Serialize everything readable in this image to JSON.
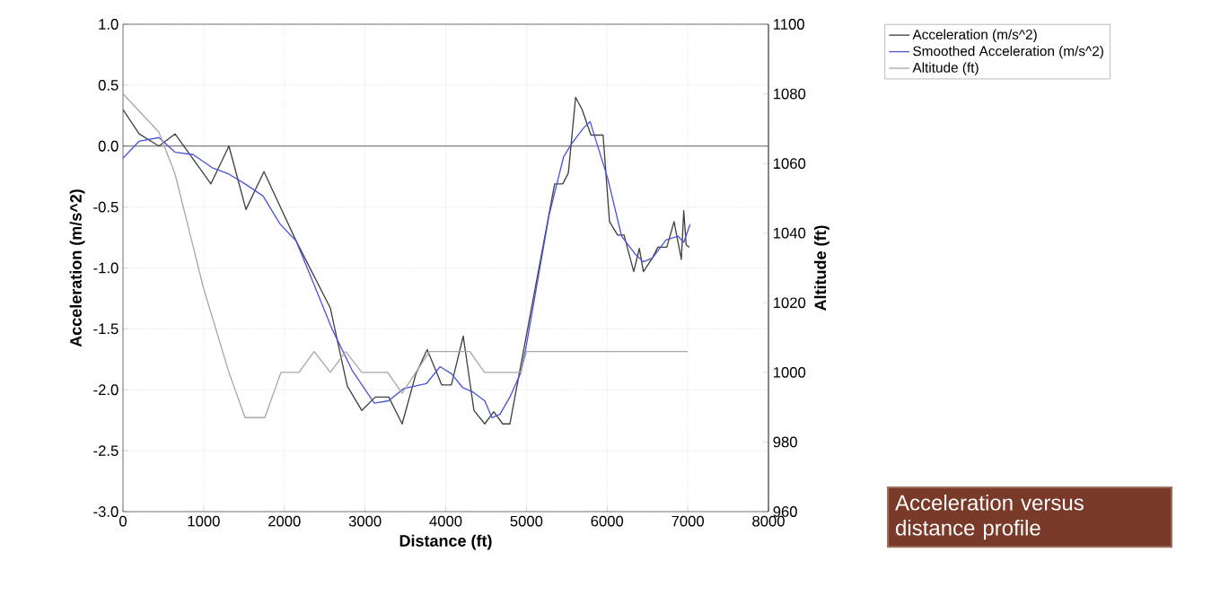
{
  "chart_data": {
    "type": "line",
    "xlabel": "Distance (ft)",
    "ylabel": "Acceleration (m/s^2)",
    "y2label": "Altitude (ft)",
    "xlim": [
      0,
      8000
    ],
    "xticks": [
      0,
      1000,
      2000,
      3000,
      4000,
      5000,
      6000,
      7000,
      8000
    ],
    "ylim": [
      -3.0,
      1.0
    ],
    "yticks": [
      {
        "value": -3.0,
        "label": "-3.0"
      },
      {
        "value": -2.5,
        "label": "-2.5"
      },
      {
        "value": -2.0,
        "label": "-2.0"
      },
      {
        "value": -1.5,
        "label": "-1.5"
      },
      {
        "value": -1.0,
        "label": "-1.0"
      },
      {
        "value": -0.5,
        "label": "-0.5"
      },
      {
        "value": 0,
        "label": "0.0"
      },
      {
        "value": 0.5,
        "label": "0.5"
      },
      {
        "value": 1.0,
        "label": "1.0"
      }
    ],
    "y2lim": [
      960,
      1100
    ],
    "y2ticks": [
      960,
      980,
      1000,
      1020,
      1040,
      1060,
      1080,
      1100
    ],
    "grid": true,
    "legend": "top right",
    "marker": "none",
    "line_style": "solid",
    "ref_lines": [
      {
        "axis": "y",
        "value": 0,
        "color": "#606060"
      }
    ],
    "annotations": [
      "Acceleration versus distance profile"
    ],
    "series": [
      {
        "name": "Acceleration (m/s^2)",
        "color": "#404040",
        "x": [
          0,
          200,
          445,
          645,
          1090,
          1313,
          1524,
          1747,
          2147,
          2570,
          2780,
          2960,
          3127,
          3293,
          3460,
          3630,
          3770,
          3950,
          4070,
          4217,
          4350,
          4484,
          4595,
          4706,
          4795,
          5350,
          5450,
          5520,
          5610,
          5690,
          5800,
          5950,
          6030,
          6130,
          6210,
          6330,
          6400,
          6450,
          6560,
          6630,
          6740,
          6830,
          6920,
          6950,
          6980,
          7020
        ],
        "values": [
          0.3,
          0.1,
          0.0,
          0.1,
          -0.31,
          0.0,
          -0.52,
          -0.21,
          -0.78,
          -1.33,
          -1.97,
          -2.17,
          -2.06,
          -2.06,
          -2.28,
          -1.87,
          -1.67,
          -1.96,
          -1.96,
          -1.56,
          -2.17,
          -2.28,
          -2.18,
          -2.28,
          -2.28,
          -0.31,
          -0.31,
          -0.22,
          0.4,
          0.3,
          0.09,
          0.09,
          -0.62,
          -0.73,
          -0.73,
          -1.03,
          -0.84,
          -1.03,
          -0.92,
          -0.83,
          -0.83,
          -0.62,
          -0.93,
          -0.53,
          -0.81,
          -0.83
        ]
      },
      {
        "name": "Smoothed Acceleration (m/s^2)",
        "color": "#4a56d8",
        "x": [
          0,
          200,
          445,
          645,
          870,
          1113,
          1313,
          1513,
          1736,
          1947,
          2147,
          2370,
          2590,
          2840,
          3115,
          3293,
          3480,
          3760,
          3930,
          4075,
          4206,
          4340,
          4484,
          4573,
          4673,
          4795,
          4930,
          4990,
          5280,
          5460,
          5560,
          5710,
          5790,
          6010,
          6180,
          6340,
          6450,
          6560,
          6730,
          6880,
          6950,
          7030
        ],
        "values": [
          -0.1,
          0.04,
          0.07,
          -0.05,
          -0.07,
          -0.18,
          -0.23,
          -0.31,
          -0.41,
          -0.64,
          -0.78,
          -1.14,
          -1.5,
          -1.84,
          -2.11,
          -2.09,
          -1.99,
          -1.95,
          -1.81,
          -1.87,
          -1.98,
          -2.02,
          -2.09,
          -2.23,
          -2.2,
          -2.06,
          -1.86,
          -1.67,
          -0.57,
          -0.09,
          0.02,
          0.15,
          0.2,
          -0.27,
          -0.74,
          -0.88,
          -0.95,
          -0.92,
          -0.77,
          -0.74,
          -0.79,
          -0.64
        ]
      },
      {
        "name": "Altitude (ft)",
        "color": "#a8a8a8",
        "axis": "y2",
        "x": [
          0,
          445,
          645,
          1000,
          1313,
          1513,
          1758,
          1958,
          2180,
          2370,
          2570,
          2760,
          2960,
          3280,
          3460,
          3800,
          4300,
          4480,
          4930,
          5000,
          7000
        ],
        "values": [
          1080,
          1069,
          1057,
          1024,
          1000,
          987,
          987,
          1000,
          1000,
          1006,
          1000,
          1006,
          1000,
          1000,
          994,
          1006,
          1006,
          1000,
          1000,
          1006,
          1006
        ]
      }
    ]
  }
}
